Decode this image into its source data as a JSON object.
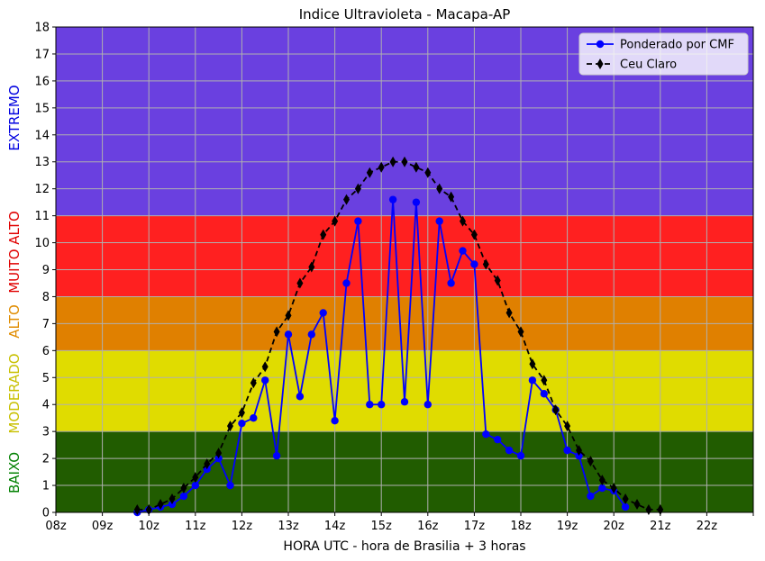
{
  "chart_data": {
    "type": "line",
    "title": "Indice Ultravioleta - Macapa-AP",
    "xlabel": "HORA UTC - hora de Brasilia + 3 horas",
    "ylabel": "",
    "xlim": [
      8,
      23
    ],
    "ylim": [
      0,
      18
    ],
    "x_ticks": [
      8,
      9,
      10,
      11,
      12,
      13,
      14,
      15,
      16,
      17,
      18,
      19,
      20,
      21,
      22,
      23
    ],
    "x_tick_labels": [
      "08z",
      "09z",
      "10z",
      "11z",
      "12z",
      "13z",
      "14z",
      "15z",
      "16z",
      "17z",
      "18z",
      "19z",
      "20z",
      "21z",
      "22z",
      ""
    ],
    "y_ticks": [
      0,
      1,
      2,
      3,
      4,
      5,
      6,
      7,
      8,
      9,
      10,
      11,
      12,
      13,
      14,
      15,
      16,
      17,
      18
    ],
    "grid": true,
    "legend_position": "top-right",
    "bands": [
      {
        "label": "BAIXO",
        "from": 0,
        "to": 3,
        "color": "#215c00",
        "label_color": "#008000"
      },
      {
        "label": "MODERADO",
        "from": 3,
        "to": 6,
        "color": "#e0dc00",
        "label_color": "#c8c000"
      },
      {
        "label": "ALTO",
        "from": 6,
        "to": 8,
        "color": "#e08000",
        "label_color": "#e08c00"
      },
      {
        "label": "MUITO ALTO",
        "from": 8,
        "to": 11,
        "color": "#ff2020",
        "label_color": "#e00000"
      },
      {
        "label": "EXTREMO",
        "from": 11,
        "to": 18,
        "color": "#6a40e0",
        "label_color": "#0000e0"
      }
    ],
    "series": [
      {
        "name": "Ponderado por CMF",
        "color": "#0000ff",
        "marker": "circle",
        "linestyle": "solid",
        "x": [
          9.75,
          10.0,
          10.25,
          10.5,
          10.75,
          11.0,
          11.25,
          11.5,
          11.75,
          12.0,
          12.25,
          12.5,
          12.75,
          13.0,
          13.25,
          13.5,
          13.75,
          14.0,
          14.25,
          14.5,
          14.75,
          15.0,
          15.25,
          15.5,
          15.75,
          16.0,
          16.25,
          16.5,
          16.75,
          17.0,
          17.25,
          17.5,
          17.75,
          18.0,
          18.25,
          18.5,
          18.75,
          19.0,
          19.25,
          19.5,
          19.75,
          20.0,
          20.25
        ],
        "y": [
          0.0,
          0.1,
          0.2,
          0.3,
          0.6,
          1.0,
          1.6,
          2.0,
          1.0,
          3.3,
          3.5,
          4.9,
          2.1,
          6.6,
          4.3,
          6.6,
          7.4,
          3.4,
          8.5,
          10.8,
          4.0,
          4.0,
          11.6,
          4.1,
          11.5,
          4.0,
          10.8,
          8.5,
          9.7,
          9.2,
          2.9,
          2.7,
          2.3,
          2.1,
          4.9,
          4.4,
          3.8,
          2.3,
          2.1,
          0.6,
          0.9,
          0.8,
          0.2
        ]
      },
      {
        "name": "Ceu Claro",
        "color": "#000000",
        "marker": "diamond",
        "linestyle": "dashed",
        "x": [
          9.75,
          10.0,
          10.25,
          10.5,
          10.75,
          11.0,
          11.25,
          11.5,
          11.75,
          12.0,
          12.25,
          12.5,
          12.75,
          13.0,
          13.25,
          13.5,
          13.75,
          14.0,
          14.25,
          14.5,
          14.75,
          15.0,
          15.25,
          15.5,
          15.75,
          16.0,
          16.25,
          16.5,
          16.75,
          17.0,
          17.25,
          17.5,
          17.75,
          18.0,
          18.25,
          18.5,
          18.75,
          19.0,
          19.25,
          19.5,
          19.75,
          20.0,
          20.25,
          20.5,
          20.75,
          21.0
        ],
        "y": [
          0.1,
          0.1,
          0.3,
          0.5,
          0.9,
          1.3,
          1.8,
          2.2,
          3.2,
          3.7,
          4.8,
          5.4,
          6.7,
          7.3,
          8.5,
          9.1,
          10.3,
          10.8,
          11.6,
          12.0,
          12.6,
          12.8,
          13.0,
          13.0,
          12.8,
          12.6,
          12.0,
          11.7,
          10.8,
          10.3,
          9.2,
          8.6,
          7.4,
          6.7,
          5.5,
          4.9,
          3.8,
          3.2,
          2.3,
          1.9,
          1.2,
          0.9,
          0.5,
          0.3,
          0.1,
          0.1
        ]
      }
    ]
  }
}
